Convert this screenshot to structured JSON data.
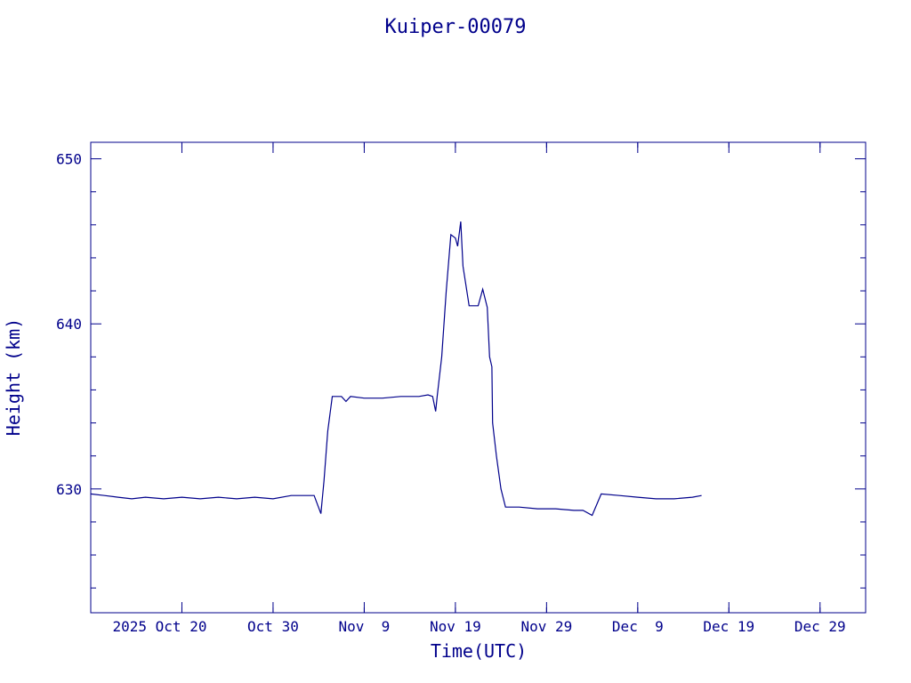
{
  "chart_data": {
    "type": "line",
    "title": "Kuiper-00079",
    "xlabel": "Time(UTC)",
    "ylabel": "Height (km)",
    "color": "#00008b",
    "xlim": [
      "2025-10-10",
      "2026-01-03"
    ],
    "ylim": [
      622.5,
      651
    ],
    "x_ticks": [
      {
        "date": "2025-10-20",
        "label": "2025 Oct 20"
      },
      {
        "date": "2025-10-30",
        "label": "Oct 30"
      },
      {
        "date": "2025-11-09",
        "label": "Nov  9"
      },
      {
        "date": "2025-11-19",
        "label": "Nov 19"
      },
      {
        "date": "2025-11-29",
        "label": "Nov 29"
      },
      {
        "date": "2025-12-09",
        "label": "Dec  9"
      },
      {
        "date": "2025-12-19",
        "label": "Dec 19"
      },
      {
        "date": "2025-12-29",
        "label": "Dec 29"
      }
    ],
    "y_ticks": [
      {
        "value": 630,
        "label": "630"
      },
      {
        "value": 640,
        "label": "640"
      },
      {
        "value": 650,
        "label": "650"
      }
    ],
    "series": [
      {
        "points": [
          [
            "2025-10-10T00:00",
            629.7
          ],
          [
            "2025-10-11T12:00",
            629.6
          ],
          [
            "2025-10-13T00:00",
            629.5
          ],
          [
            "2025-10-14T12:00",
            629.4
          ],
          [
            "2025-10-16T00:00",
            629.5
          ],
          [
            "2025-10-18T00:00",
            629.4
          ],
          [
            "2025-10-20T00:00",
            629.5
          ],
          [
            "2025-10-22T00:00",
            629.4
          ],
          [
            "2025-10-24T00:00",
            629.5
          ],
          [
            "2025-10-26T00:00",
            629.4
          ],
          [
            "2025-10-28T00:00",
            629.5
          ],
          [
            "2025-10-30T00:00",
            629.4
          ],
          [
            "2025-11-01T00:00",
            629.6
          ],
          [
            "2025-11-03T12:00",
            629.6
          ],
          [
            "2025-11-04T06:00",
            628.5
          ],
          [
            "2025-11-04T14:00",
            630.5
          ],
          [
            "2025-11-05T00:00",
            633.5
          ],
          [
            "2025-11-05T12:00",
            635.6
          ],
          [
            "2025-11-06T12:00",
            635.6
          ],
          [
            "2025-11-07T00:00",
            635.3
          ],
          [
            "2025-11-07T12:00",
            635.6
          ],
          [
            "2025-11-09T00:00",
            635.5
          ],
          [
            "2025-11-11T00:00",
            635.5
          ],
          [
            "2025-11-13T00:00",
            635.6
          ],
          [
            "2025-11-15T00:00",
            635.6
          ],
          [
            "2025-11-16T00:00",
            635.7
          ],
          [
            "2025-11-16T12:00",
            635.6
          ],
          [
            "2025-11-16T20:00",
            634.7
          ],
          [
            "2025-11-17T00:00",
            635.6
          ],
          [
            "2025-11-17T12:00",
            638.0
          ],
          [
            "2025-11-18T00:00",
            642.0
          ],
          [
            "2025-11-18T12:00",
            645.4
          ],
          [
            "2025-11-19T00:00",
            645.2
          ],
          [
            "2025-11-19T06:00",
            644.7
          ],
          [
            "2025-11-19T14:00",
            646.2
          ],
          [
            "2025-11-19T20:00",
            643.5
          ],
          [
            "2025-11-20T12:00",
            641.1
          ],
          [
            "2025-11-21T12:00",
            641.1
          ],
          [
            "2025-11-22T00:00",
            642.1
          ],
          [
            "2025-11-22T12:00",
            641.0
          ],
          [
            "2025-11-22T18:00",
            638.0
          ],
          [
            "2025-11-23T00:00",
            637.4
          ],
          [
            "2025-11-23T02:00",
            634.0
          ],
          [
            "2025-11-23T12:00",
            632.0
          ],
          [
            "2025-11-24T00:00",
            630.0
          ],
          [
            "2025-11-24T12:00",
            628.9
          ],
          [
            "2025-11-26T00:00",
            628.9
          ],
          [
            "2025-11-28T00:00",
            628.8
          ],
          [
            "2025-11-30T00:00",
            628.8
          ],
          [
            "2025-12-02T00:00",
            628.7
          ],
          [
            "2025-12-03T00:00",
            628.7
          ],
          [
            "2025-12-04T00:00",
            628.4
          ],
          [
            "2025-12-05T00:00",
            629.7
          ],
          [
            "2025-12-07T00:00",
            629.6
          ],
          [
            "2025-12-09T00:00",
            629.5
          ],
          [
            "2025-12-11T00:00",
            629.4
          ],
          [
            "2025-12-13T00:00",
            629.4
          ],
          [
            "2025-12-15T00:00",
            629.5
          ],
          [
            "2025-12-16T00:00",
            629.6
          ]
        ]
      }
    ]
  }
}
